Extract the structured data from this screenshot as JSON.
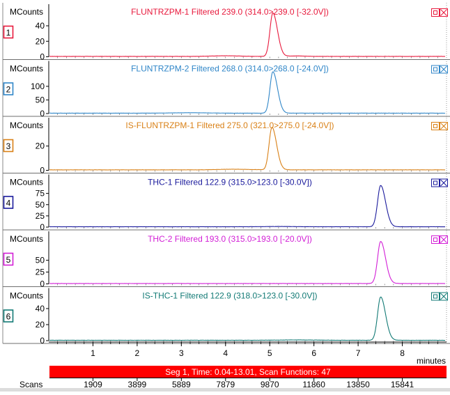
{
  "axis_time": {
    "label": "minutes",
    "range": [
      0,
      9.0
    ],
    "ticks": [
      1,
      2,
      3,
      4,
      5,
      6,
      7,
      8
    ],
    "tick_labels": [
      "1",
      "2",
      "3",
      "4",
      "5",
      "6",
      "7",
      "8"
    ]
  },
  "segment_bar": {
    "text": "Seg 1, Time: 0.04-13.01, Scan Functions: 47",
    "color": "#ff0000"
  },
  "scans": {
    "label": "Scans",
    "values": [
      "1909",
      "3899",
      "5889",
      "7879",
      "9870",
      "11860",
      "13850",
      "15841"
    ]
  },
  "chart_data": [
    {
      "type": "line",
      "index": "1",
      "title": "FLUNTRZPM-1 Filtered 239.0 (314.0>239.0 [-32.0V])",
      "ylabel": "MCounts",
      "yticks": [
        0,
        20,
        40
      ],
      "ylim": [
        0,
        58
      ],
      "color": "#e8193c",
      "peak": {
        "rt": 5.07,
        "height": 56,
        "baseline": 0.5,
        "sigma_left": 0.065,
        "sigma_right": 0.105
      },
      "bumps": [
        {
          "rt": 4.0,
          "height": 0.8,
          "sigma": 0.3
        },
        {
          "rt": 5.6,
          "height": 0.6,
          "sigma": 0.2
        }
      ],
      "noise": 0.25
    },
    {
      "type": "line",
      "index": "2",
      "title": "FLUNTRZPM-2 Filtered 268.0 (314.0>268.0 [-24.0V])",
      "ylabel": "MCounts",
      "yticks": [
        0,
        50,
        100
      ],
      "ylim": [
        0,
        165
      ],
      "color": "#2f86c8",
      "peak": {
        "rt": 5.07,
        "height": 152,
        "baseline": 1.5,
        "sigma_left": 0.065,
        "sigma_right": 0.105
      },
      "bumps": [
        {
          "rt": 3.2,
          "height": 1.5,
          "sigma": 0.4
        }
      ],
      "noise": 0.6
    },
    {
      "type": "line",
      "index": "3",
      "title": "IS-FLUNTRZPM-1 Filtered 275.0 (321.0>275.0 [-24.0V])",
      "ylabel": "MCounts",
      "yticks": [
        0,
        20
      ],
      "ylim": [
        0,
        37
      ],
      "color": "#d98016",
      "peak": {
        "rt": 5.05,
        "height": 35,
        "baseline": 0.4,
        "sigma_left": 0.065,
        "sigma_right": 0.105
      },
      "bumps": [
        {
          "rt": 4.2,
          "height": 0.5,
          "sigma": 0.35
        }
      ],
      "noise": 0.18
    },
    {
      "type": "line",
      "index": "4",
      "title": "THC-1 Filtered 122.9 (315.0>123.0 [-30.0V])",
      "ylabel": "MCounts",
      "yticks": [
        0,
        25,
        50,
        75
      ],
      "ylim": [
        0,
        100
      ],
      "color": "#1a1a9c",
      "peak": {
        "rt": 7.51,
        "height": 92,
        "baseline": 0.8,
        "sigma_left": 0.07,
        "sigma_right": 0.11
      },
      "bumps": [
        {
          "rt": 5.2,
          "height": 0.6,
          "sigma": 0.3
        }
      ],
      "noise": 0.4
    },
    {
      "type": "line",
      "index": "5",
      "title": "THC-2 Filtered 193.0 (315.0>193.0 [-20.0V])",
      "ylabel": "MCounts",
      "yticks": [
        0,
        25,
        50
      ],
      "ylim": [
        0,
        95
      ],
      "color": "#d21ed6",
      "peak": {
        "rt": 7.51,
        "height": 89,
        "baseline": 0.8,
        "sigma_left": 0.07,
        "sigma_right": 0.11
      },
      "bumps": [],
      "noise": 0.4
    },
    {
      "type": "line",
      "index": "6",
      "title": "IS-THC-1 Filtered 122.9 (318.0>123.0 [-30.0V])",
      "ylabel": "MCounts",
      "yticks": [
        0,
        20,
        40
      ],
      "ylim": [
        0,
        56
      ],
      "color": "#127a75",
      "peak": {
        "rt": 7.51,
        "height": 54,
        "baseline": 0.5,
        "sigma_left": 0.07,
        "sigma_right": 0.11
      },
      "bumps": [
        {
          "rt": 5.6,
          "height": 0.4,
          "sigma": 0.4
        }
      ],
      "noise": 0.25
    }
  ]
}
